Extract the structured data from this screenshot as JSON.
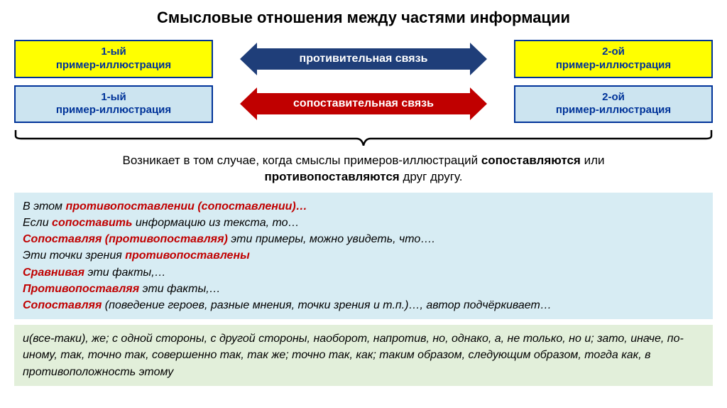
{
  "title": "Смысловые отношения между частями информации",
  "rows": [
    {
      "left": {
        "line1": "1-ый",
        "line2": "пример-иллюстрация",
        "style": "yellow"
      },
      "right": {
        "line1": "2-ой",
        "line2": "пример-иллюстрация",
        "style": "yellow"
      },
      "arrow": {
        "label": "противительная связь",
        "color": "blue"
      }
    },
    {
      "left": {
        "line1": "1-ый",
        "line2": "пример-иллюстрация",
        "style": "blue"
      },
      "right": {
        "line1": "2-ой",
        "line2": "пример-иллюстрация",
        "style": "blue"
      },
      "arrow": {
        "label": "сопоставительная связь",
        "color": "red"
      }
    }
  ],
  "colors": {
    "yellow_bg": "#ffff00",
    "lightblue_bg": "#cce4f0",
    "border": "#003399",
    "arrow_blue": "#1f3e79",
    "arrow_red": "#c00000",
    "panel_blue": "#d7ecf3",
    "panel_green": "#e2efda",
    "keyword": "#c00000"
  },
  "description": {
    "prefix": "Возникает в том случае, когда смыслы примеров-иллюстраций ",
    "bold1": "сопоставляются",
    "mid": " или ",
    "bold2": "противопоставляются",
    "suffix": " друг другу."
  },
  "panel_blue_lines": [
    {
      "parts": [
        {
          "t": "В этом "
        },
        {
          "t": "противопоставлении (сопоставлении)…",
          "kw": true
        }
      ]
    },
    {
      "parts": [
        {
          "t": "Если "
        },
        {
          "t": "сопоставить",
          "kw": true
        },
        {
          "t": " информацию из текста, то…"
        }
      ]
    },
    {
      "parts": [
        {
          "t": "Сопоставляя (противопоставляя)",
          "kw": true
        },
        {
          "t": " эти примеры, можно увидеть, что…."
        }
      ]
    },
    {
      "parts": [
        {
          "t": "Эти точки зрения "
        },
        {
          "t": "противопоставлены",
          "kw": true
        }
      ]
    },
    {
      "parts": [
        {
          "t": "Сравнивая",
          "kw": true
        },
        {
          "t": " эти факты,…"
        }
      ]
    },
    {
      "parts": [
        {
          "t": "Противопоставляя",
          "kw": true
        },
        {
          "t": " эти факты,…"
        }
      ]
    },
    {
      "parts": [
        {
          "t": "Сопоставляя",
          "kw": true
        },
        {
          "t": " (поведение героев, разные мнения, точки зрения и т.п.)…, автор подчёркивает…"
        }
      ]
    }
  ],
  "panel_green_text": "и(все-таки), же; с одной стороны, с другой стороны, наоборот, напротив, но, однако, а, не только, но и; зато, иначе, по-иному, так, точно так, совершенно так, так же; точно так, как; таким образом, следующим образом, тогда как, в противоположность этому"
}
